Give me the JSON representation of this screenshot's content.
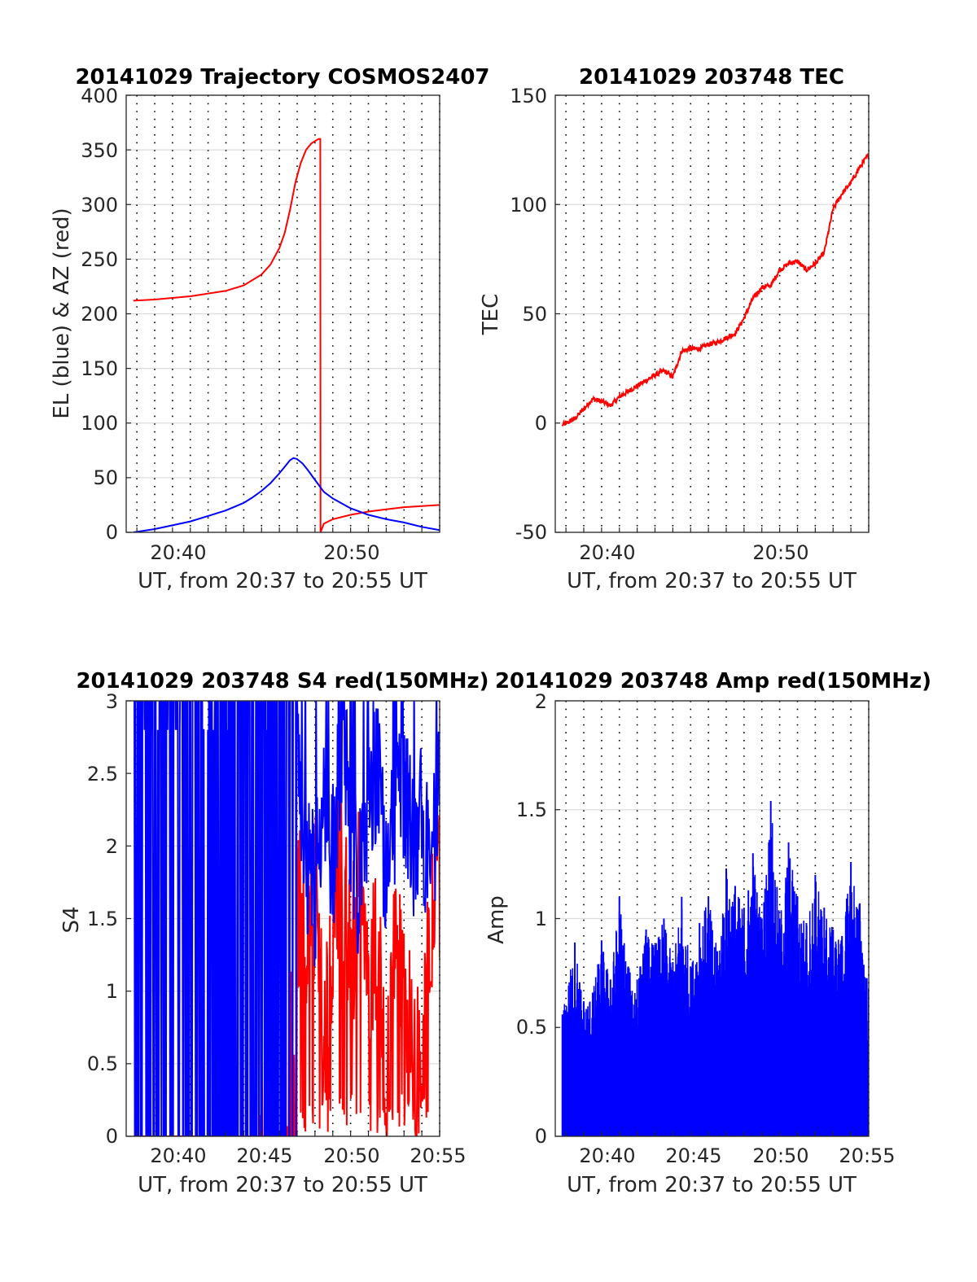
{
  "figure": {
    "panels": [
      {
        "title": "20141029 Trajectory COSMOS2407",
        "xlabel": "UT, from 20:37 to 20:55 UT",
        "ylabel": "EL (blue) & AZ (red)",
        "xticks": [
          "20:40",
          "20:50"
        ],
        "yticks": [
          "0",
          "50",
          "100",
          "150",
          "200",
          "250",
          "300",
          "350",
          "400"
        ]
      },
      {
        "title": "20141029 203748 TEC",
        "xlabel": "UT, from 20:37 to 20:55 UT",
        "ylabel": "TEC",
        "xticks": [
          "20:40",
          "20:50"
        ],
        "yticks": [
          "-50",
          "0",
          "50",
          "100",
          "150"
        ]
      },
      {
        "title": "20141029 203748 S4 red(150MHz)",
        "xlabel": "UT, from 20:37 to 20:55 UT",
        "ylabel": "S4",
        "xticks": [
          "20:40",
          "20:45",
          "20:50",
          "20:55"
        ],
        "yticks": [
          "0",
          "0.5",
          "1",
          "1.5",
          "2",
          "2.5",
          "3"
        ]
      },
      {
        "title": "20141029 203748 Amp red(150MHz)",
        "xlabel": "UT, from 20:37 to 20:55 UT",
        "ylabel": "Amp",
        "xticks": [
          "20:40",
          "20:45",
          "20:50",
          "20:55"
        ],
        "yticks": [
          "0",
          "0.5",
          "1",
          "1.5",
          "2"
        ]
      }
    ]
  },
  "chart_data": [
    {
      "type": "line",
      "title": "20141029 Trajectory COSMOS2407",
      "xlabel": "UT, from 20:37 to 20:55 UT",
      "ylabel": "EL (blue) & AZ (red)",
      "x_unit": "minutes after 20:37 UT",
      "xlim": [
        0.4,
        18
      ],
      "ylim": [
        0,
        400
      ],
      "grid": true,
      "series": [
        {
          "color": "#ff0000",
          "x": [
            0.8,
            2,
            4,
            6,
            7,
            8,
            8.5,
            9,
            9.3,
            9.6,
            9.9,
            10.2,
            10.5,
            10.8,
            11,
            11.2,
            11.3,
            11.31,
            11.5,
            12,
            13,
            14,
            15,
            16,
            17,
            18
          ],
          "y": [
            212,
            213,
            216,
            221,
            226,
            236,
            245,
            260,
            274,
            295,
            320,
            338,
            350,
            356,
            358,
            360,
            360,
            0,
            8,
            12,
            16,
            19,
            21,
            23,
            24,
            25
          ]
        },
        {
          "color": "#0000ff",
          "x": [
            0.8,
            2,
            4,
            5,
            6,
            7,
            7.5,
            8,
            8.5,
            9,
            9.3,
            9.6,
            9.8,
            10,
            10.3,
            10.6,
            11,
            11.5,
            12,
            13,
            14,
            15,
            16,
            17,
            18
          ],
          "y": [
            0,
            3,
            10,
            15,
            20,
            27,
            32,
            38,
            45,
            54,
            60,
            66,
            68,
            67,
            63,
            57,
            48,
            37,
            31,
            22,
            16,
            12,
            9,
            5,
            2
          ]
        }
      ]
    },
    {
      "type": "line",
      "title": "20141029 203748 TEC",
      "xlabel": "UT, from 20:37 to 20:55 UT",
      "ylabel": "TEC",
      "x_unit": "minutes after 20:37 UT",
      "xlim": [
        0.4,
        18
      ],
      "ylim": [
        -50,
        150
      ],
      "grid": true,
      "series": [
        {
          "color": "#ff0000",
          "x": [
            0.8,
            1.5,
            2.5,
            3,
            3.5,
            4,
            5,
            6,
            6.5,
            7,
            7.5,
            8,
            8.5,
            9,
            9.5,
            10,
            10.5,
            11,
            11.5,
            12,
            12.5,
            13,
            13.5,
            14,
            14.5,
            15,
            15.5,
            16,
            16.5,
            17,
            17.5,
            18
          ],
          "y": [
            -1,
            2,
            11,
            10,
            8,
            12,
            17,
            22,
            24,
            21,
            33,
            34,
            34,
            36,
            37,
            39,
            41,
            48,
            57,
            62,
            63,
            70,
            73,
            74,
            70,
            73,
            78,
            98,
            105,
            110,
            117,
            123
          ]
        }
      ]
    },
    {
      "type": "line",
      "title": "20141029 203748 S4 red(150MHz)",
      "xlabel": "UT, from 20:37 to 20:55 UT",
      "ylabel": "S4",
      "x_unit": "minutes after 20:37 UT",
      "xlim": [
        0.4,
        18
      ],
      "ylim": [
        0,
        3
      ],
      "grid": true,
      "series": [
        {
          "color": "#ff0000",
          "x": [
            10,
            10.5,
            11,
            11.5,
            12,
            12.5,
            13,
            13.5,
            14,
            14.5,
            15,
            15.5,
            16,
            16.5,
            17,
            17.5,
            18
          ],
          "y": [
            1.6,
            1.3,
            1.7,
            0.6,
            1.5,
            2.0,
            1.1,
            1.8,
            0.9,
            1.4,
            0.4,
            1.2,
            1.0,
            0.7,
            0.3,
            1.5,
            1.8
          ]
        },
        {
          "color": "#0000ff",
          "x": [
            10,
            10.5,
            11,
            11.5,
            12,
            12.5,
            13,
            13.5,
            14,
            14.5,
            15,
            15.5,
            16,
            16.5,
            17,
            17.5,
            18
          ],
          "y": [
            2.5,
            2.0,
            1.6,
            2.4,
            1.9,
            2.7,
            2.2,
            1.7,
            2.3,
            2.6,
            1.8,
            2.1,
            2.4,
            2.0,
            2.2,
            1.9,
            2.3
          ]
        }
      ]
    },
    {
      "type": "line",
      "title": "20141029 203748 Amp red(150MHz)",
      "xlabel": "UT, from 20:37 to 20:55 UT",
      "ylabel": "Amp",
      "x_unit": "minutes after 20:37 UT",
      "xlim": [
        0.4,
        18
      ],
      "ylim": [
        0,
        2
      ],
      "grid": true,
      "series": [
        {
          "color": "#0000ff",
          "x": [
            0.8,
            1.5,
            2,
            2.5,
            3,
            3.5,
            4,
            4.5,
            5,
            5.5,
            6,
            6.5,
            7,
            7.5,
            8,
            8.5,
            9,
            9.5,
            10,
            10.5,
            11,
            11.5,
            12,
            12.5,
            13,
            13.5,
            14,
            14.5,
            15,
            15.5,
            16,
            16.5,
            17,
            17.5,
            18
          ],
          "y": [
            0.56,
            0.89,
            0.62,
            0.66,
            0.9,
            0.72,
            1.1,
            0.78,
            0.72,
            0.95,
            0.88,
            1.0,
            0.8,
            1.1,
            0.78,
            0.98,
            1.1,
            0.85,
            1.23,
            1.15,
            1.05,
            1.3,
            1.0,
            1.54,
            1.0,
            1.35,
            1.1,
            0.98,
            1.2,
            1.05,
            0.95,
            0.92,
            1.26,
            1.07,
            0.68
          ]
        }
      ]
    }
  ]
}
